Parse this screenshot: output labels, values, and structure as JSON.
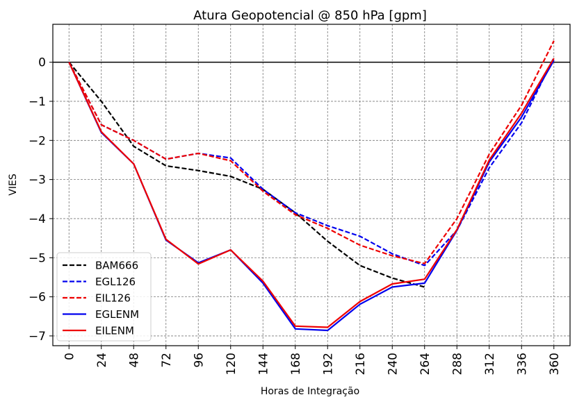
{
  "chart_data": {
    "type": "line",
    "title": "Atura Geopotencial @ 850 hPa [gpm]",
    "xlabel": "Horas de Integração",
    "ylabel": "VIES",
    "x": [
      0,
      24,
      48,
      72,
      96,
      120,
      144,
      168,
      192,
      216,
      240,
      264,
      288,
      312,
      336,
      360
    ],
    "x_tick_labels": [
      "0",
      "24",
      "48",
      "72",
      "96",
      "120",
      "144",
      "168",
      "192",
      "216",
      "240",
      "264",
      "288",
      "312",
      "336",
      "360"
    ],
    "xlim": [
      -12,
      372
    ],
    "ylim": [
      -7.25,
      0.97
    ],
    "y_ticks": [
      0,
      -1,
      -2,
      -3,
      -4,
      -5,
      -6,
      -7
    ],
    "y_tick_labels": [
      "0",
      "−1",
      "−2",
      "−3",
      "−4",
      "−5",
      "−6",
      "−7"
    ],
    "grid": true,
    "zero_line": true,
    "legend_position": "lower-left",
    "series": [
      {
        "name": "BAM666",
        "color": "#000000",
        "style": "dashed",
        "x": [
          0,
          24,
          48,
          72,
          96,
          120,
          144,
          168,
          192,
          216,
          240,
          264
        ],
        "values": [
          0,
          -1.0,
          -2.15,
          -2.65,
          -2.77,
          -2.92,
          -3.25,
          -3.85,
          -4.58,
          -5.2,
          -5.52,
          -5.75
        ]
      },
      {
        "name": "EGL126",
        "color": "#0000ee",
        "style": "dashed",
        "x": [
          0,
          24,
          48,
          72,
          96,
          120,
          144,
          168,
          192,
          216,
          240,
          264,
          288,
          312,
          336,
          360
        ],
        "values": [
          0,
          -1.6,
          -2.0,
          -2.48,
          -2.33,
          -2.45,
          -3.25,
          -3.85,
          -4.18,
          -4.45,
          -4.9,
          -5.2,
          -4.3,
          -2.7,
          -1.55,
          0.12
        ]
      },
      {
        "name": "EIL126",
        "color": "#ee0000",
        "style": "dashed",
        "x": [
          0,
          24,
          48,
          72,
          96,
          120,
          144,
          168,
          192,
          216,
          240,
          264,
          288,
          312,
          336,
          360
        ],
        "values": [
          0,
          -1.6,
          -2.0,
          -2.48,
          -2.33,
          -2.52,
          -3.3,
          -3.9,
          -4.25,
          -4.68,
          -4.95,
          -5.15,
          -4.0,
          -2.35,
          -1.1,
          0.55
        ]
      },
      {
        "name": "EGLENM",
        "color": "#0000ee",
        "style": "solid",
        "x": [
          0,
          24,
          48,
          72,
          96,
          120,
          144,
          168,
          192,
          216,
          240,
          264,
          288,
          312,
          336,
          360
        ],
        "values": [
          0,
          -1.8,
          -2.6,
          -4.55,
          -5.13,
          -4.8,
          -5.65,
          -6.82,
          -6.86,
          -6.19,
          -5.75,
          -5.65,
          -4.3,
          -2.55,
          -1.4,
          0.05
        ]
      },
      {
        "name": "EILENM",
        "color": "#ee0000",
        "style": "solid",
        "x": [
          0,
          24,
          48,
          72,
          96,
          120,
          144,
          168,
          192,
          216,
          240,
          264,
          288,
          312,
          336,
          360
        ],
        "values": [
          0,
          -1.78,
          -2.6,
          -4.53,
          -5.16,
          -4.8,
          -5.6,
          -6.75,
          -6.78,
          -6.12,
          -5.67,
          -5.55,
          -4.28,
          -2.5,
          -1.3,
          0.1
        ]
      }
    ]
  }
}
